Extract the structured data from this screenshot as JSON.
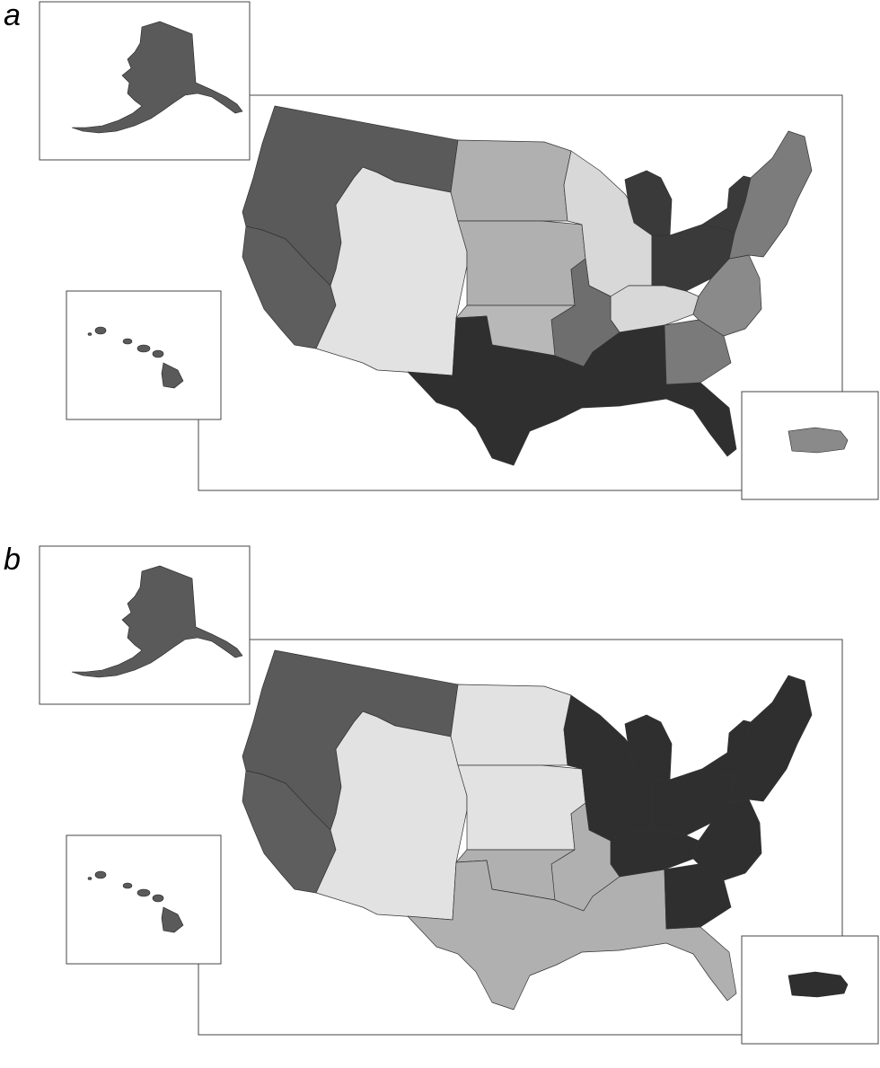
{
  "panels": [
    {
      "label": "a",
      "fills": {
        "pnw": "#5a5a5a",
        "california": "#5e5e5e",
        "mountain": "#e2e2e2",
        "northern_plains": "#b0b0b0",
        "central_plains": "#b0b0b0",
        "upper_midwest": "#d8d8d8",
        "michigan": "#3a3a3a",
        "ohio_valley": "#3a3a3a",
        "kentucky": "#d8d8d8",
        "arkansas": "#6e6e6e",
        "oklahoma": "#b8b8b8",
        "texas_gulf": "#2f2f2f",
        "georgia": "#7a7a7a",
        "carolinas": "#8a8a8a",
        "northeast": "#7c7c7c",
        "new_york": "#3a3a3a",
        "alaska": "#5a5a5a",
        "hawaii": "#5a5a5a",
        "puerto_rico": "#8a8a8a"
      }
    },
    {
      "label": "b",
      "fills": {
        "pnw": "#5a5a5a",
        "california": "#5e5e5e",
        "mountain": "#e2e2e2",
        "northern_plains": "#e2e2e2",
        "central_plains": "#e2e2e2",
        "upper_midwest": "#2f2f2f",
        "michigan": "#2f2f2f",
        "ohio_valley": "#2f2f2f",
        "kentucky": "#2f2f2f",
        "arkansas": "#b0b0b0",
        "oklahoma": "#b0b0b0",
        "texas_gulf": "#b0b0b0",
        "georgia": "#2f2f2f",
        "carolinas": "#2f2f2f",
        "northeast": "#2f2f2f",
        "new_york": "#2f2f2f",
        "alaska": "#5a5a5a",
        "hawaii": "#5a5a5a",
        "puerto_rico": "#2f2f2f"
      }
    }
  ]
}
